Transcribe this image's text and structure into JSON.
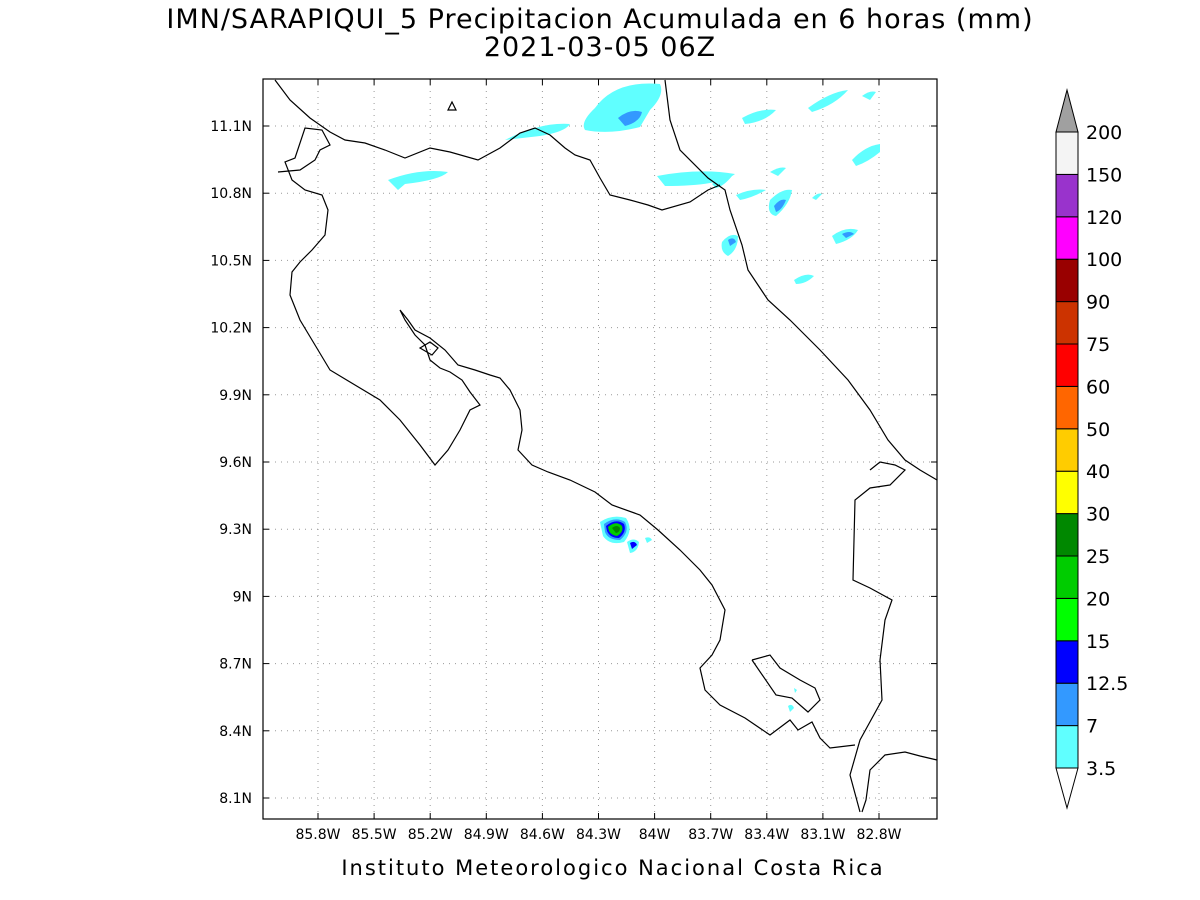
{
  "title": {
    "line1": "IMN/SARAPIQUI_5 Precipitacion Acumulada en 6 horas (mm)",
    "line2": "2021-03-05 06Z"
  },
  "footer": "Instituto Meteorologico Nacional Costa Rica",
  "map": {
    "lon_range": [
      -86.1,
      -83.1
    ],
    "lat_range": [
      8.0,
      11.3
    ],
    "lon_ticks": [
      "85.8W",
      "85.5W",
      "85.2W",
      "84.9W",
      "84.6W",
      "84.3W",
      "84W",
      "83.7W",
      "83.4W",
      "83.1W",
      "82.8W"
    ],
    "lat_ticks": [
      "8.1N",
      "8.4N",
      "8.7N",
      "9N",
      "9.3N",
      "9.6N",
      "9.9N",
      "10.2N",
      "10.5N",
      "10.8N",
      "11.1N"
    ],
    "gridlines": "dotted"
  },
  "legend": {
    "levels": [
      "3.5",
      "7",
      "12.5",
      "15",
      "20",
      "25",
      "30",
      "40",
      "50",
      "60",
      "75",
      "90",
      "100",
      "120",
      "150",
      "200"
    ],
    "colors": [
      "#60ffff",
      "#3399ff",
      "#0000ff",
      "#00ff00",
      "#00cc00",
      "#008800",
      "#ffff00",
      "#ffcc00",
      "#ff6600",
      "#ff0000",
      "#cc3300",
      "#990000",
      "#ff00ff",
      "#9933cc",
      "#f4f4f4",
      "#a0a0a0"
    ]
  }
}
